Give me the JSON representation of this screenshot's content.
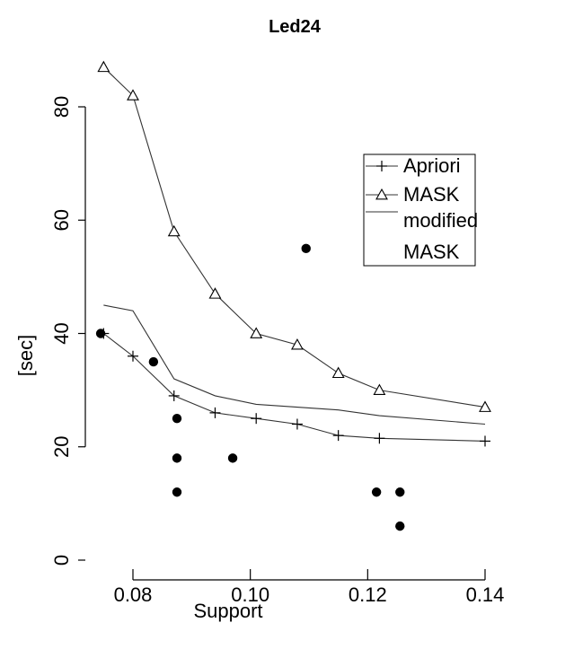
{
  "chart_data": {
    "type": "line",
    "title": "Led24",
    "xlabel": "Support",
    "ylabel": "[sec]",
    "xlim": [
      0.07,
      0.145
    ],
    "ylim": [
      0,
      86
    ],
    "x_ticks": [
      {
        "value": 0.08,
        "label": "0.08"
      },
      {
        "value": 0.1,
        "label": "0.10"
      },
      {
        "value": 0.12,
        "label": "0.12"
      },
      {
        "value": 0.14,
        "label": "0.14"
      }
    ],
    "y_ticks": [
      {
        "value": 0,
        "label": "0"
      },
      {
        "value": 20,
        "label": "20"
      },
      {
        "value": 40,
        "label": "40"
      },
      {
        "value": 60,
        "label": "60"
      },
      {
        "value": 80,
        "label": "80"
      }
    ],
    "series": [
      {
        "name": "Apriori",
        "marker": "plus",
        "x": [
          0.075,
          0.08,
          0.087,
          0.094,
          0.101,
          0.108,
          0.115,
          0.122,
          0.14
        ],
        "y": [
          40,
          36,
          29,
          26,
          25,
          24,
          22,
          21.5,
          21
        ]
      },
      {
        "name": "MASK",
        "marker": "triangle",
        "x": [
          0.075,
          0.08,
          0.087,
          0.094,
          0.101,
          0.108,
          0.115,
          0.122,
          0.14
        ],
        "y": [
          87,
          82,
          58,
          47,
          40,
          38,
          33,
          30,
          27
        ]
      },
      {
        "name": "modified MASK",
        "marker": "none",
        "x": [
          0.075,
          0.08,
          0.087,
          0.094,
          0.101,
          0.108,
          0.115,
          0.122,
          0.14
        ],
        "y": [
          45,
          44,
          32,
          29,
          27.5,
          27,
          26.5,
          25.5,
          24
        ]
      }
    ],
    "extra_points": {
      "x": [
        0.0745,
        0.0835,
        0.0875,
        0.0875,
        0.0875,
        0.097,
        0.1095,
        0.1215,
        0.1255,
        0.1255
      ],
      "y": [
        40,
        35,
        25,
        12,
        18,
        18,
        55,
        12,
        12,
        6
      ]
    },
    "legend": {
      "placement": "right",
      "entries": [
        {
          "label": "Apriori",
          "marker": "plus"
        },
        {
          "label": "MASK",
          "marker": "triangle"
        },
        {
          "label": "modified",
          "marker": "line"
        },
        {
          "label": "MASK",
          "marker": "none"
        }
      ]
    },
    "grid": false,
    "colors": {
      "line": "#333333",
      "marker": "#000000",
      "dot": "#000000"
    }
  }
}
